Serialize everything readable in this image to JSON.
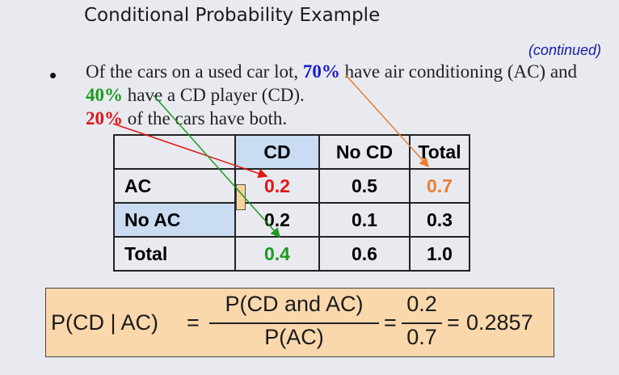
{
  "slide": {
    "title": "Conditional Probability Example",
    "continued": "(continued)"
  },
  "bullet": {
    "t1": "Of the cars on a used car lot, ",
    "p70": "70%",
    "t2": " have air conditioning (AC) and ",
    "p40": "40%",
    "t3": " have a CD player (CD).",
    "p20": "20%",
    "t4": " of the cars have both."
  },
  "table": {
    "headers": [
      "",
      "CD",
      "No CD",
      "Total"
    ],
    "rows": [
      {
        "label": "AC",
        "values": [
          "0.2",
          "0.5",
          "0.7"
        ]
      },
      {
        "label": "No AC",
        "values": [
          "0.2",
          "0.1",
          "0.3"
        ]
      },
      {
        "label": "Total",
        "values": [
          "0.4",
          "0.6",
          "1.0"
        ]
      }
    ]
  },
  "formula": {
    "lhs": "P(CD | AC)",
    "eq": "=",
    "num1": "P(CD and AC)",
    "den1": "P(AC)",
    "num2": "0.2",
    "den2": "0.7",
    "result": "0.2857"
  },
  "colors": {
    "red": "#e01515",
    "green": "#1e9a1e",
    "orange": "#ec7d2e",
    "blue": "#1a1ad0",
    "formula_bg": "#fbd8ac"
  }
}
